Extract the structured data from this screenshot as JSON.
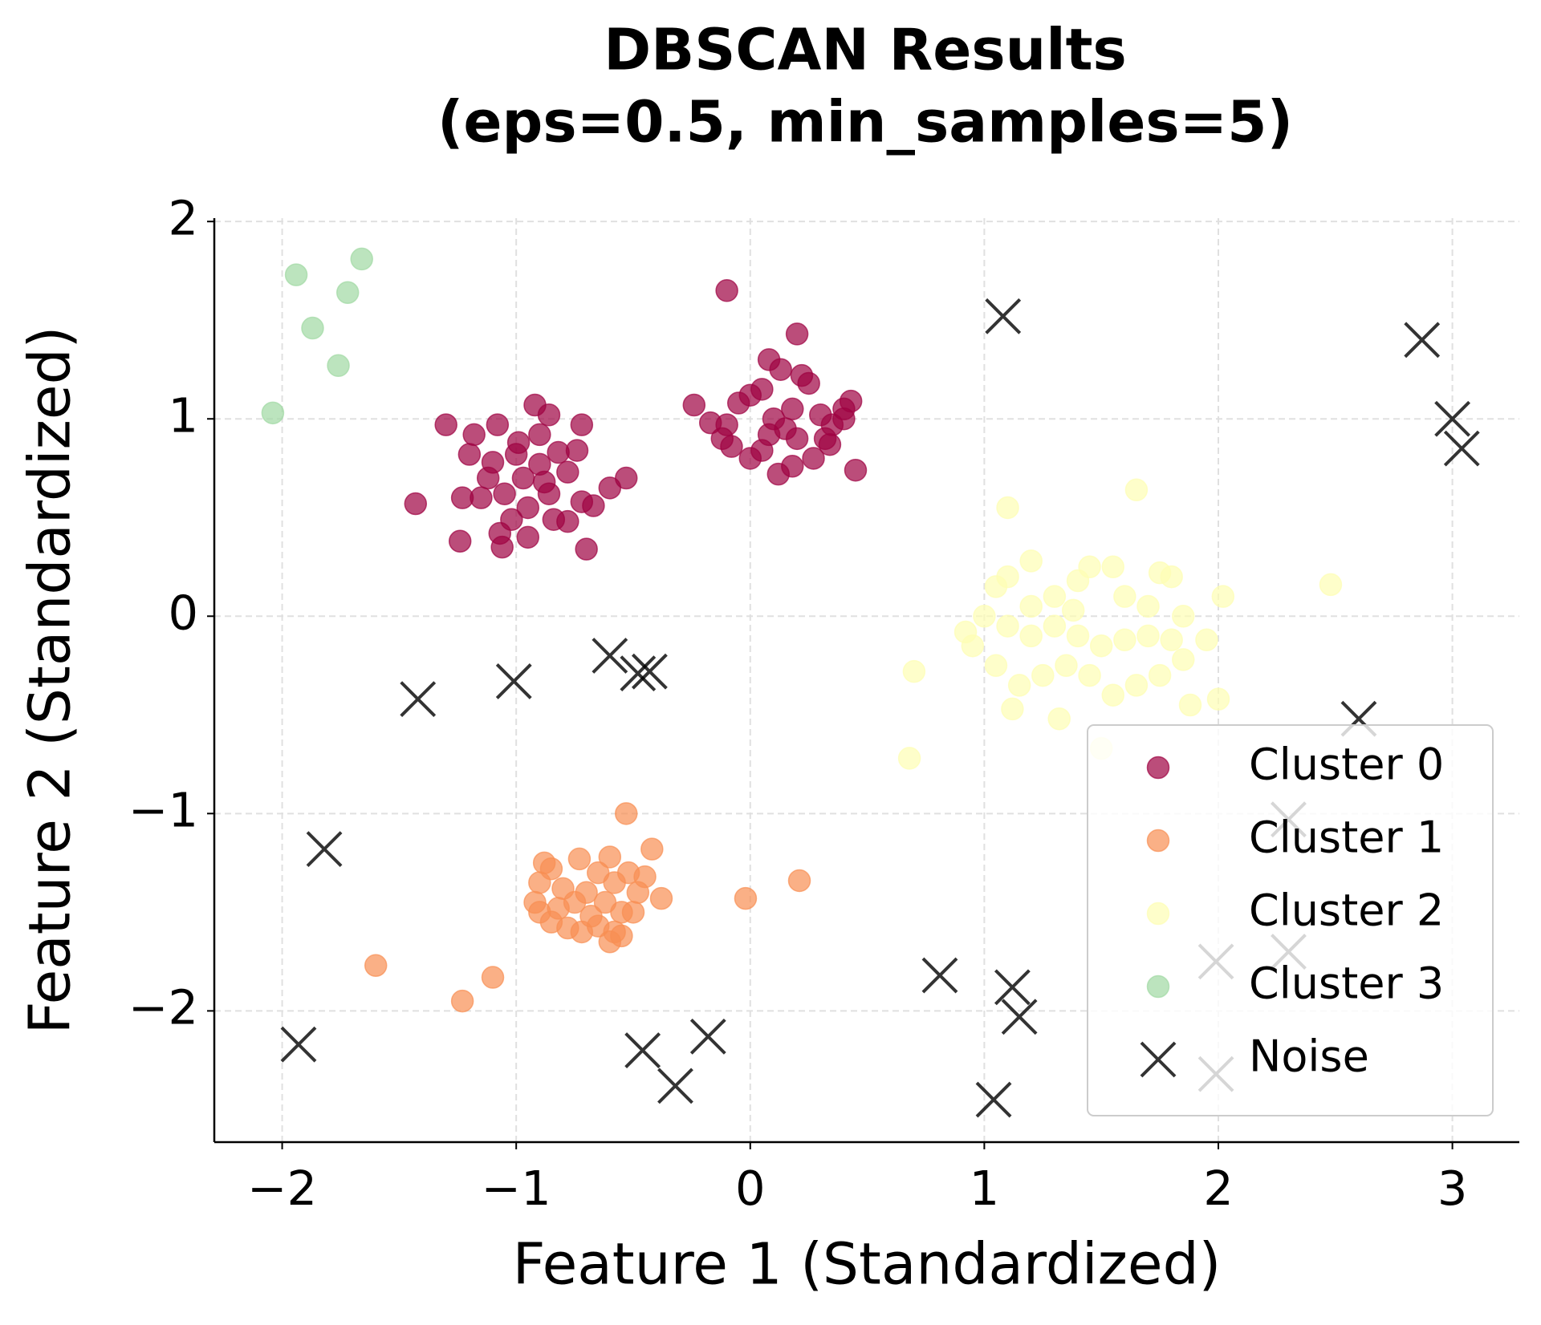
{
  "chart_data": {
    "type": "scatter",
    "title": [
      "DBSCAN Results",
      "(eps=0.5, min_samples=5)"
    ],
    "xlabel": "Feature 1 (Standardized)",
    "ylabel": "Feature 2 (Standardized)",
    "xlim": [
      -2.29,
      3.286
    ],
    "ylim": [
      -2.665,
      2.017
    ],
    "xticks": [
      {
        "value": -2,
        "label": "−2"
      },
      {
        "value": -1,
        "label": "−1"
      },
      0,
      1,
      2,
      3
    ],
    "yticks": [
      {
        "value": -2,
        "label": "−2"
      },
      {
        "value": -1,
        "label": "−1"
      },
      0,
      1,
      2
    ],
    "grid": true,
    "legend": "lower right",
    "series": [
      {
        "name": "Cluster 0",
        "color": "#9e0142",
        "marker": "o",
        "x": [
          -1.08,
          -1.0,
          -0.92,
          -0.86,
          -1.18,
          -1.2,
          -1.12,
          -1.05,
          -0.97,
          -0.9,
          -0.82,
          -0.78,
          -0.74,
          -0.72,
          -0.86,
          -0.95,
          -1.02,
          -1.07,
          -1.06,
          -0.95,
          -0.84,
          -0.78,
          -0.72,
          -0.67,
          -1.15,
          -1.23,
          -0.99,
          -0.9,
          -1.1,
          -0.88,
          -1.43,
          -1.3,
          -1.24,
          -0.7,
          -0.6,
          -0.53,
          -0.1,
          -0.17,
          -0.05,
          0.0,
          0.05,
          0.08,
          0.13,
          0.22,
          0.25,
          0.1,
          0.15,
          0.2,
          0.18,
          0.3,
          0.35,
          0.34,
          0.27,
          0.18,
          0.12,
          0.05,
          0.0,
          -0.08,
          -0.12,
          0.08,
          0.4,
          0.32,
          -0.1,
          0.2,
          -0.24,
          0.45,
          0.43,
          0.4
        ],
        "y": [
          0.97,
          0.82,
          1.07,
          1.02,
          0.92,
          0.82,
          0.7,
          0.62,
          0.7,
          0.77,
          0.83,
          0.73,
          0.84,
          0.97,
          0.62,
          0.55,
          0.49,
          0.42,
          0.35,
          0.4,
          0.49,
          0.48,
          0.58,
          0.56,
          0.6,
          0.6,
          0.88,
          0.92,
          0.78,
          0.68,
          0.57,
          0.97,
          0.38,
          0.34,
          0.65,
          0.7,
          0.97,
          0.98,
          1.08,
          1.12,
          1.15,
          1.3,
          1.25,
          1.22,
          1.18,
          1.0,
          0.95,
          0.9,
          1.05,
          1.02,
          0.97,
          0.87,
          0.8,
          0.76,
          0.72,
          0.84,
          0.8,
          0.86,
          0.9,
          0.92,
          1.0,
          0.9,
          1.65,
          1.43,
          1.07,
          0.74,
          1.09,
          1.05
        ]
      },
      {
        "name": "Cluster 1",
        "color": "#f88e53",
        "marker": "o",
        "x": [
          -0.73,
          -0.6,
          -0.85,
          -0.9,
          -0.92,
          -0.9,
          -0.85,
          -0.78,
          -0.72,
          -0.65,
          -0.58,
          -0.55,
          -0.5,
          -0.48,
          -0.52,
          -0.58,
          -0.65,
          -0.7,
          -0.75,
          -0.8,
          -0.62,
          -0.55,
          -0.68,
          -0.82,
          -0.45,
          -0.42,
          -0.38,
          -0.53,
          -1.6,
          -1.23,
          -1.1,
          -0.02,
          0.21,
          -0.88,
          -0.6
        ],
        "y": [
          -1.23,
          -1.22,
          -1.28,
          -1.35,
          -1.45,
          -1.5,
          -1.55,
          -1.58,
          -1.6,
          -1.57,
          -1.6,
          -1.62,
          -1.5,
          -1.4,
          -1.3,
          -1.35,
          -1.3,
          -1.4,
          -1.45,
          -1.38,
          -1.45,
          -1.5,
          -1.52,
          -1.48,
          -1.32,
          -1.18,
          -1.43,
          -1.0,
          -1.77,
          -1.95,
          -1.83,
          -1.43,
          -1.34,
          -1.25,
          -1.65
        ]
      },
      {
        "name": "Cluster 2",
        "color": "#fdfdb4",
        "marker": "o",
        "x": [
          1.05,
          1.1,
          1.2,
          1.3,
          1.4,
          1.45,
          1.55,
          1.6,
          1.7,
          1.75,
          1.8,
          1.85,
          1.8,
          1.95,
          1.85,
          1.75,
          1.65,
          1.55,
          1.45,
          1.35,
          1.25,
          1.15,
          1.05,
          0.95,
          0.92,
          1.0,
          1.1,
          1.2,
          1.3,
          1.4,
          1.5,
          1.6,
          1.7,
          1.12,
          1.32,
          1.5,
          1.88,
          2.0,
          0.7,
          0.68,
          1.1,
          1.65,
          2.02,
          2.48,
          1.2,
          1.38
        ],
        "y": [
          0.15,
          0.2,
          0.28,
          0.1,
          0.18,
          0.25,
          0.25,
          0.1,
          0.05,
          0.22,
          0.2,
          0.0,
          -0.12,
          -0.12,
          -0.22,
          -0.3,
          -0.35,
          -0.4,
          -0.3,
          -0.25,
          -0.3,
          -0.35,
          -0.25,
          -0.15,
          -0.08,
          0.0,
          -0.05,
          -0.1,
          -0.05,
          -0.1,
          -0.15,
          -0.12,
          -0.1,
          -0.47,
          -0.52,
          -0.67,
          -0.45,
          -0.42,
          -0.28,
          -0.72,
          0.55,
          0.64,
          0.1,
          0.16,
          0.05,
          0.03
        ]
      },
      {
        "name": "Cluster 3",
        "color": "#9fd8a2",
        "marker": "o",
        "x": [
          -2.04,
          -1.94,
          -1.87,
          -1.72,
          -1.66,
          -1.76
        ],
        "y": [
          1.03,
          1.73,
          1.46,
          1.64,
          1.81,
          1.27
        ]
      },
      {
        "name": "Noise",
        "color": "#000000",
        "marker": "x",
        "x": [
          -1.93,
          -1.82,
          -1.42,
          -1.01,
          -0.6,
          -0.48,
          -0.43,
          -0.46,
          -0.32,
          -0.18,
          0.81,
          1.04,
          1.12,
          1.15,
          1.08,
          1.99,
          1.99,
          2.3,
          2.3,
          2.6,
          2.87,
          3.0,
          3.04
        ],
        "y": [
          -2.17,
          -1.18,
          -0.42,
          -0.33,
          -0.2,
          -0.29,
          -0.28,
          -2.2,
          -2.38,
          -2.13,
          -1.82,
          -2.45,
          -1.88,
          -2.03,
          1.52,
          -1.75,
          -2.32,
          -1.7,
          -1.03,
          -0.52,
          1.4,
          1.0,
          0.85
        ]
      }
    ]
  }
}
